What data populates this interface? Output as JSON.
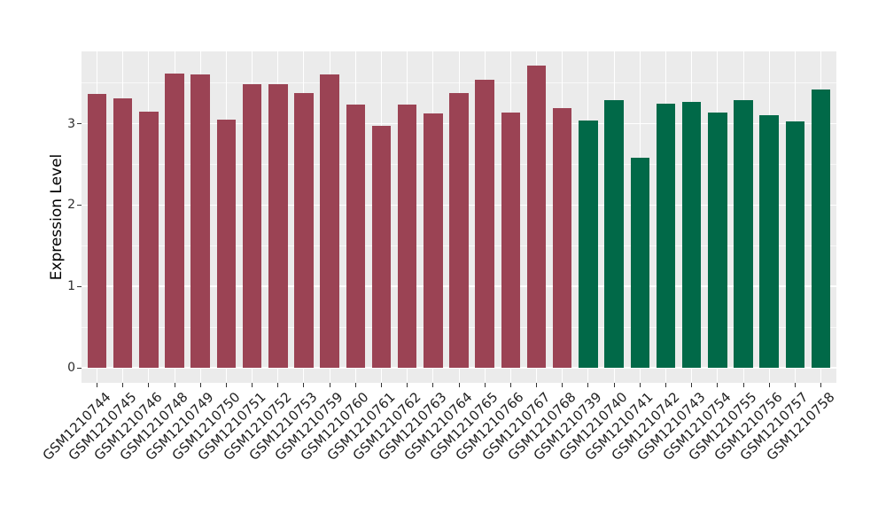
{
  "chart_data": {
    "type": "bar",
    "title": "",
    "xlabel": "",
    "ylabel": "Expression Level",
    "yticks": [
      0,
      1,
      2,
      3
    ],
    "ylim": [
      0,
      3.9
    ],
    "grid": "major and minor horizontal white gridlines, vertical white gridline at each bar center",
    "legend": "none",
    "panel_background": "#EBEBEB",
    "gridline_color": "#FFFFFF",
    "group_colors": {
      "left_group": "#9B4354",
      "right_group": "#016948"
    },
    "bars": [
      {
        "label": "GSM1210744",
        "value": 3.37,
        "group": "left_group"
      },
      {
        "label": "GSM1210745",
        "value": 3.31,
        "group": "left_group"
      },
      {
        "label": "GSM1210746",
        "value": 3.15,
        "group": "left_group"
      },
      {
        "label": "GSM1210748",
        "value": 3.62,
        "group": "left_group"
      },
      {
        "label": "GSM1210749",
        "value": 3.61,
        "group": "left_group"
      },
      {
        "label": "GSM1210750",
        "value": 3.05,
        "group": "left_group"
      },
      {
        "label": "GSM1210751",
        "value": 3.49,
        "group": "left_group"
      },
      {
        "label": "GSM1210752",
        "value": 3.49,
        "group": "left_group"
      },
      {
        "label": "GSM1210753",
        "value": 3.38,
        "group": "left_group"
      },
      {
        "label": "GSM1210759",
        "value": 3.61,
        "group": "left_group"
      },
      {
        "label": "GSM1210760",
        "value": 3.24,
        "group": "left_group"
      },
      {
        "label": "GSM1210761",
        "value": 2.97,
        "group": "left_group"
      },
      {
        "label": "GSM1210762",
        "value": 3.23,
        "group": "left_group"
      },
      {
        "label": "GSM1210763",
        "value": 3.13,
        "group": "left_group"
      },
      {
        "label": "GSM1210764",
        "value": 3.38,
        "group": "left_group"
      },
      {
        "label": "GSM1210765",
        "value": 3.54,
        "group": "left_group"
      },
      {
        "label": "GSM1210766",
        "value": 3.14,
        "group": "left_group"
      },
      {
        "label": "GSM1210767",
        "value": 3.71,
        "group": "left_group"
      },
      {
        "label": "GSM1210768",
        "value": 3.19,
        "group": "left_group"
      },
      {
        "label": "GSM1210739",
        "value": 3.04,
        "group": "right_group"
      },
      {
        "label": "GSM1210740",
        "value": 3.29,
        "group": "right_group"
      },
      {
        "label": "GSM1210741",
        "value": 2.58,
        "group": "right_group"
      },
      {
        "label": "GSM1210742",
        "value": 3.25,
        "group": "right_group"
      },
      {
        "label": "GSM1210743",
        "value": 3.27,
        "group": "right_group"
      },
      {
        "label": "GSM1210754",
        "value": 3.14,
        "group": "right_group"
      },
      {
        "label": "GSM1210755",
        "value": 3.29,
        "group": "right_group"
      },
      {
        "label": "GSM1210756",
        "value": 3.11,
        "group": "right_group"
      },
      {
        "label": "GSM1210757",
        "value": 3.03,
        "group": "right_group"
      },
      {
        "label": "GSM1210758",
        "value": 3.42,
        "group": "right_group"
      }
    ]
  }
}
